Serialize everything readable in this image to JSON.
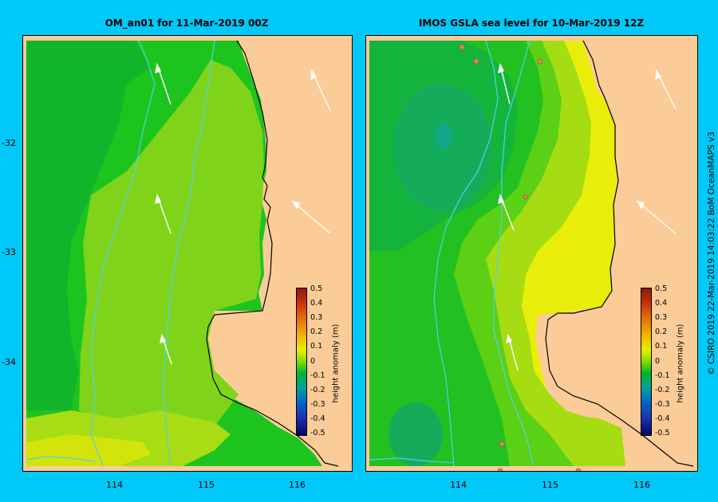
{
  "left_panel": {
    "title": "OM_an01  for 11-Mar-2019 00Z"
  },
  "right_panel": {
    "title": "IMOS  GSLA sea level   for 10-Mar-2019 12Z"
  },
  "y_axis": {
    "labels": [
      "-32",
      "-33",
      "-34"
    ]
  },
  "x_axis": {
    "labels": [
      "114",
      "115",
      "116"
    ]
  },
  "colorbar": {
    "label": "height anomaly (m)",
    "ticks": [
      "0.5",
      "0.4",
      "0.3",
      "0.2",
      "0.1",
      "0",
      "-0.1",
      "-0.2",
      "-0.3",
      "-0.4",
      "-0.5"
    ],
    "colors": [
      "#8b1a0a",
      "#c8320a",
      "#e6780a",
      "#f0b400",
      "#e6f000",
      "#7cdc00",
      "#00b432",
      "#00a0a0",
      "#0064c8",
      "#1e32b4",
      "#000a64"
    ]
  },
  "credit": "© CSIRO 2019     22-Mar-2019 14:03:22 BoM OceanMAPS v3",
  "colors": {
    "background": "#00c8f8",
    "land": "#fccc98",
    "contour_line": "#50d0f0"
  },
  "map_extent": {
    "lon": [
      113.0,
      116.6
    ],
    "lat": [
      -35.0,
      -31.0
    ]
  }
}
